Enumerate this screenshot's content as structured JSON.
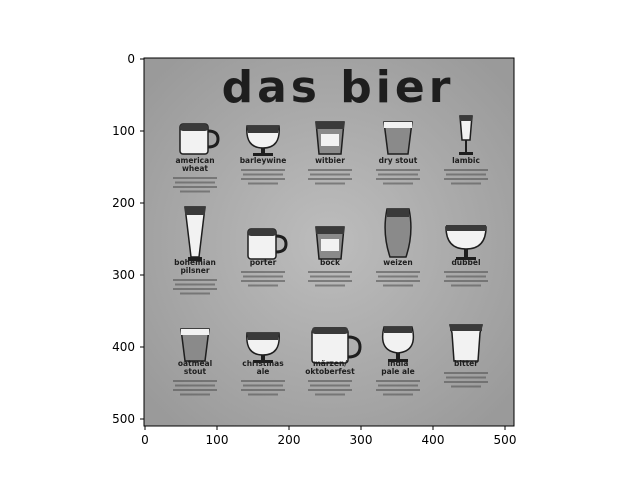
{
  "poster": {
    "title": "das bier",
    "beers": [
      {
        "name": "american",
        "name2": "wheat",
        "glass": "mug"
      },
      {
        "name": "barleywine",
        "name2": "",
        "glass": "snifter"
      },
      {
        "name": "witbier",
        "name2": "",
        "glass": "tumbler"
      },
      {
        "name": "dry stout",
        "name2": "",
        "glass": "pint"
      },
      {
        "name": "lambic",
        "name2": "",
        "glass": "flute"
      },
      {
        "name": "bohemian",
        "name2": "pilsner",
        "glass": "pilsner"
      },
      {
        "name": "porter",
        "name2": "",
        "glass": "mug"
      },
      {
        "name": "bock",
        "name2": "",
        "glass": "tumbler"
      },
      {
        "name": "weizen",
        "name2": "",
        "glass": "weizen"
      },
      {
        "name": "dubbel",
        "name2": "",
        "glass": "chalice"
      },
      {
        "name": "oatmeal",
        "name2": "stout",
        "glass": "pint"
      },
      {
        "name": "christmas",
        "name2": "ale",
        "glass": "snifter"
      },
      {
        "name": "märzen/",
        "name2": "oktoberfest",
        "glass": "stein"
      },
      {
        "name": "india",
        "name2": "pale ale",
        "glass": "tulip"
      },
      {
        "name": "bitter",
        "name2": "",
        "glass": "nonic"
      }
    ]
  },
  "axes": {
    "x_ticks": [
      "0",
      "100",
      "200",
      "300",
      "400",
      "500"
    ],
    "y_ticks": [
      "0",
      "100",
      "200",
      "300",
      "400",
      "500"
    ]
  },
  "colors": {
    "poster_bg": "#a9a9a9",
    "ink": "#1e1e1e",
    "glass_light": "#f2f2f2",
    "beer_mid": "#8a8a8a",
    "beer_dark": "#3a3a3a"
  }
}
